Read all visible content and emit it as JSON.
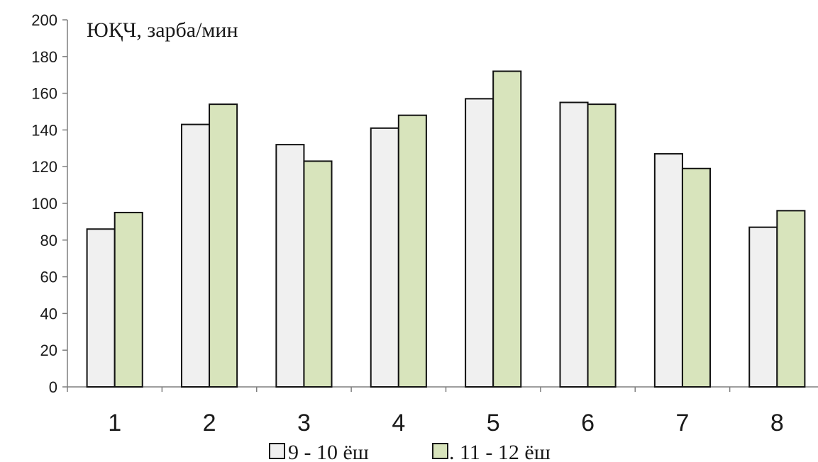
{
  "chart_data": {
    "type": "bar",
    "title": "",
    "ylabel": "ЮҚЧ, зарба/мин",
    "xlabel": "",
    "categories": [
      "1",
      "2",
      "3",
      "4",
      "5",
      "6",
      "7",
      "8"
    ],
    "series": [
      {
        "name": "9 - 10 ёш",
        "color": "#f0f0f0",
        "values": [
          86,
          143,
          132,
          141,
          157,
          155,
          127,
          87
        ]
      },
      {
        "name": ". 11 - 12 ёш",
        "color": "#d8e4bc",
        "values": [
          95,
          154,
          123,
          148,
          172,
          154,
          119,
          96
        ]
      }
    ],
    "ylim": [
      0,
      200
    ],
    "yticks": [
      "0",
      "20",
      "40",
      "60",
      "80",
      "100",
      "120",
      "140",
      "160",
      "180",
      "200"
    ],
    "grid": false,
    "legend_position": "bottom"
  }
}
